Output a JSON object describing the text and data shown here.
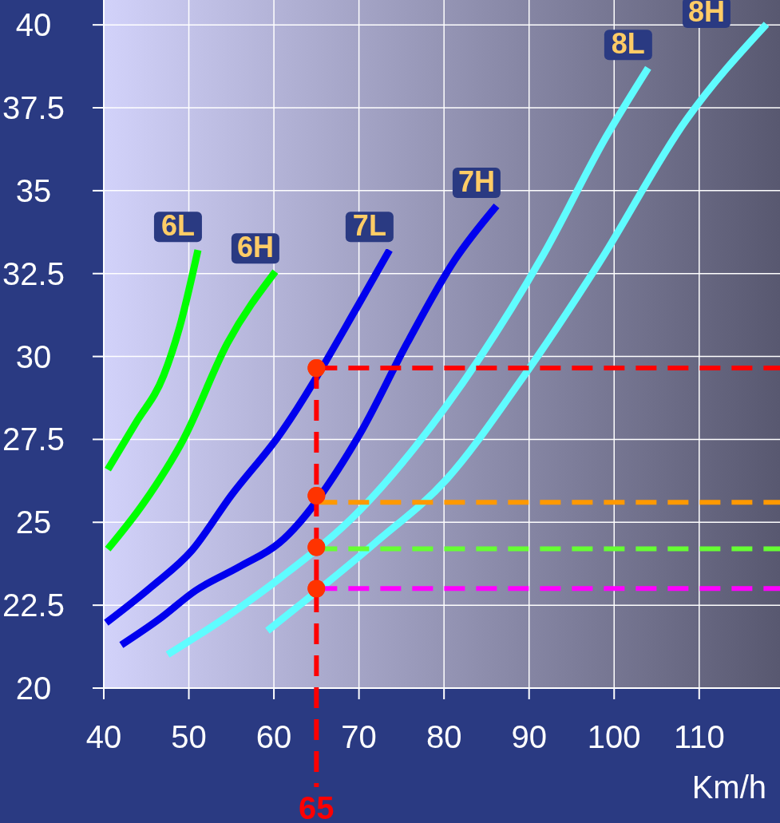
{
  "chart_data": {
    "type": "line",
    "xlabel": "Km/h",
    "xlim": [
      40,
      119.5
    ],
    "xticks": [
      40,
      50,
      60,
      70,
      80,
      90,
      100,
      110
    ],
    "ylim": [
      20,
      40.75
    ],
    "yticks": [
      20,
      22.5,
      25,
      27.5,
      30,
      32.5,
      35,
      37.5,
      40
    ],
    "grid": true,
    "legend": false,
    "marker": "none",
    "line_style": "solid",
    "series": [
      {
        "name": "6L",
        "color": "#00ff00",
        "x": [
          40.47,
          43.75,
          47.04,
          48.91,
          51.07
        ],
        "values": [
          26.59,
          27.99,
          29.43,
          30.88,
          33.21
        ]
      },
      {
        "name": "6H",
        "color": "#00ff00",
        "x": [
          40.47,
          44.69,
          49.38,
          54.54,
          60.17
        ],
        "values": [
          24.19,
          25.58,
          27.51,
          30.4,
          32.56
        ]
      },
      {
        "name": "7L",
        "color": "#0000ee",
        "x": [
          40.28,
          45.63,
          50.32,
          55.01,
          60.64,
          70.03,
          73.59
        ],
        "values": [
          21.97,
          23.06,
          24.14,
          25.82,
          27.63,
          31.6,
          33.21
        ]
      },
      {
        "name": "7H",
        "color": "#0000ee",
        "x": [
          42.06,
          46.57,
          50.79,
          55.95,
          60.64,
          70.03,
          75.66,
          81.29,
          86.17
        ],
        "values": [
          21.3,
          22.09,
          22.94,
          23.66,
          24.38,
          27.63,
          30.4,
          32.92,
          34.54
        ]
      },
      {
        "name": "8L",
        "color": "#5ffcff",
        "x": [
          47.51,
          54.08,
          60.64,
          70.03,
          76.6,
          84.1,
          91.61,
          99.12,
          104.0
        ],
        "values": [
          21.01,
          22.09,
          23.3,
          25.34,
          27.27,
          29.92,
          33.04,
          36.65,
          38.7
        ]
      },
      {
        "name": "8H",
        "color": "#5ffcff",
        "x": [
          59.24,
          71.9,
          80.35,
          88.79,
          98.18,
          108.5,
          117.9
        ],
        "values": [
          21.73,
          24.38,
          26.31,
          29.19,
          32.8,
          37.14,
          40.02
        ]
      },
      {
        "type": "scatter",
        "color": "#ff3300",
        "marker": "circle",
        "x": [
          65,
          65,
          65,
          65
        ],
        "values": [
          29.65,
          25.8,
          24.25,
          23.0
        ]
      }
    ],
    "ref_lines": [
      {
        "axis": "x",
        "value": 65,
        "label": "65",
        "color": "#ff0000",
        "line_style": "dashed"
      },
      {
        "axis": "y",
        "value": 29.65,
        "color": "#ff0000",
        "line_style": "dashed"
      },
      {
        "axis": "y",
        "value": 25.6,
        "color": "#ff9900",
        "line_style": "dashed"
      },
      {
        "axis": "y",
        "value": 24.2,
        "color": "#66ff33",
        "line_style": "dashed"
      },
      {
        "axis": "y",
        "value": 23.0,
        "color": "#ff00ff",
        "line_style": "dashed"
      }
    ]
  }
}
